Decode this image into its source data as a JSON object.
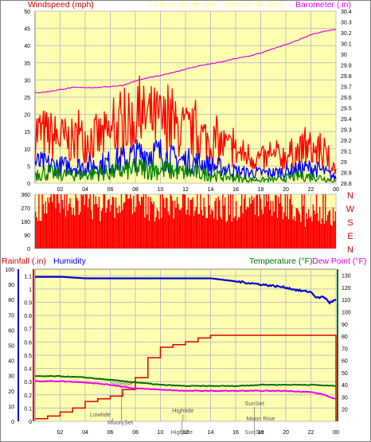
{
  "header": {
    "left_label": "Windspeed (mph)",
    "center_label": "24 hour graph day : October 30 2020",
    "right_label": "Barometer (.in)"
  },
  "colors": {
    "plot_bg": "#ffffb0",
    "frame": "#808080",
    "grid": "#c0c0c0",
    "windspeed_high": "#ff0000",
    "windspeed_avg": "#0000ff",
    "windspeed_low": "#008000",
    "barometer": "#e000e0",
    "direction": "#ff0000",
    "humidity": "#0000cc",
    "rainfall": "#dd0000",
    "temperature": "#007000",
    "dew_point": "#ee00ee",
    "rain_label": "#cc0000",
    "humidity_label": "#0000cc",
    "temp_label": "#007000",
    "dew_label": "#dd00dd",
    "header_label": "#ee00ee",
    "compass": "#d00000"
  },
  "chart_data": [
    {
      "id": "wind",
      "type": "line",
      "x_ticks": [
        "02",
        "04",
        "06",
        "08",
        "10",
        "12",
        "14",
        "16",
        "18",
        "20",
        "22",
        "00"
      ],
      "x_range": [
        0,
        24
      ],
      "y_left": {
        "label": "Windspeed (mph)",
        "range": [
          0,
          50
        ],
        "ticks": [
          0,
          5,
          10,
          15,
          20,
          25,
          30,
          35,
          40,
          45,
          50
        ]
      },
      "y_right": {
        "label": "Barometer (.in)",
        "range": [
          28.8,
          30.4
        ],
        "ticks": [
          "28.8",
          "28.9",
          "29",
          "29.1",
          "29.2",
          "29.3",
          "29.4",
          "29.5",
          "29.6",
          "29.7",
          "29.8",
          "29.9",
          "30",
          "30.1",
          "30.2",
          "30.3",
          "30.4"
        ]
      },
      "series": [
        {
          "role": "windspeed_high",
          "axis": "left",
          "x": [
            0,
            1,
            2,
            3,
            4,
            5,
            6,
            7,
            8,
            9,
            10,
            11,
            12,
            13,
            14,
            15,
            16,
            17,
            18,
            19,
            20,
            21,
            22,
            23,
            24
          ],
          "y": [
            15,
            14,
            13,
            12,
            13,
            13,
            14,
            16,
            18,
            19,
            18,
            16,
            15,
            14,
            12,
            11,
            9,
            8,
            7,
            7,
            8,
            9,
            10,
            8,
            4
          ]
        },
        {
          "role": "windspeed_avg",
          "axis": "left",
          "x": [
            0,
            1,
            2,
            3,
            4,
            5,
            6,
            7,
            8,
            9,
            10,
            11,
            12,
            13,
            14,
            15,
            16,
            17,
            18,
            19,
            20,
            21,
            22,
            23,
            24
          ],
          "y": [
            6,
            5.5,
            5,
            5,
            5,
            5.5,
            6,
            7,
            8,
            9,
            8.5,
            7,
            6.5,
            6,
            5,
            4.5,
            3.5,
            3,
            3,
            3,
            3.5,
            4,
            4.5,
            3.5,
            1.5
          ]
        },
        {
          "role": "windspeed_low",
          "axis": "left",
          "x": [
            0,
            1,
            2,
            3,
            4,
            5,
            6,
            7,
            8,
            9,
            10,
            11,
            12,
            13,
            14,
            15,
            16,
            17,
            18,
            19,
            20,
            21,
            22,
            23,
            24
          ],
          "y": [
            3,
            3,
            2.5,
            2.5,
            2.5,
            3,
            3,
            3.5,
            4,
            4.5,
            4,
            3.5,
            3,
            3,
            2.5,
            2,
            1.5,
            1,
            1,
            1,
            1.5,
            2,
            2,
            1.5,
            0.5
          ]
        },
        {
          "role": "barometer",
          "axis": "right",
          "x": [
            0,
            1,
            2,
            3,
            4,
            5,
            6,
            7,
            8,
            9,
            10,
            11,
            12,
            13,
            14,
            15,
            16,
            17,
            18,
            19,
            20,
            21,
            22,
            23,
            24
          ],
          "y": [
            29.64,
            29.65,
            29.67,
            29.69,
            29.69,
            29.69,
            29.7,
            29.71,
            29.75,
            29.78,
            29.8,
            29.83,
            29.86,
            29.89,
            29.91,
            29.93,
            29.96,
            29.98,
            30.01,
            30.05,
            30.09,
            30.13,
            30.18,
            30.21,
            30.23
          ]
        }
      ]
    },
    {
      "id": "direction",
      "type": "bar",
      "x_range": [
        0,
        24
      ],
      "y_range": [
        0,
        360
      ],
      "y_ticks": [
        0,
        90,
        180,
        270,
        360
      ],
      "compass": [
        "N",
        "W",
        "S",
        "E",
        "N"
      ],
      "x": [
        0,
        1,
        2,
        3,
        4,
        5,
        6,
        7,
        8,
        9,
        10,
        11,
        12,
        13,
        14,
        15,
        16,
        17,
        18,
        19,
        20,
        21,
        22,
        23,
        24
      ],
      "y": [
        250,
        300,
        270,
        290,
        310,
        260,
        280,
        300,
        320,
        270,
        260,
        280,
        300,
        290,
        270,
        260,
        250,
        280,
        300,
        270,
        260,
        240,
        230,
        220,
        180
      ]
    },
    {
      "id": "climate",
      "type": "line",
      "x_ticks": [
        "02",
        "04",
        "06",
        "08",
        "10",
        "12",
        "14",
        "16",
        "18",
        "20",
        "22",
        "00"
      ],
      "x_range": [
        0,
        24
      ],
      "y_humidity": {
        "label": "Humidity",
        "range": [
          0,
          100
        ],
        "ticks": [
          0,
          10,
          20,
          30,
          40,
          50,
          60,
          70,
          80,
          90,
          100
        ]
      },
      "y_rain": {
        "label": "Rainfall (.in)",
        "range": [
          0,
          1.15
        ],
        "ticks": [
          "0",
          "0.1",
          "0.2",
          "0.3",
          "0.4",
          "0.5",
          "0.6",
          "0.7",
          "0.8",
          "0.9",
          "1",
          "1.1"
        ]
      },
      "y_temp": {
        "label": "Temperature (°F)",
        "range": [
          10,
          135
        ],
        "ticks": [
          20,
          30,
          40,
          50,
          60,
          70,
          80,
          90,
          100,
          110,
          120,
          130
        ]
      },
      "dew_label": "Dew Point (°F)",
      "series": [
        {
          "role": "humidity",
          "axis": "humidity",
          "x": [
            0,
            2,
            4,
            6,
            8,
            10,
            12,
            14,
            15,
            16,
            17,
            18,
            19,
            20,
            21,
            22,
            22.5,
            23,
            23.5,
            24
          ],
          "y": [
            95,
            95,
            94,
            94,
            94,
            94,
            94,
            94,
            93,
            92,
            91,
            90,
            89,
            88,
            86,
            85,
            81,
            82,
            78,
            80
          ]
        },
        {
          "role": "rainfall",
          "axis": "rain",
          "x": [
            0,
            1,
            2,
            3,
            4,
            5,
            6,
            7,
            8,
            9,
            10,
            11,
            12,
            13,
            14,
            15,
            16,
            17,
            18,
            19,
            20,
            21,
            22,
            23,
            23.9,
            24
          ],
          "y": [
            0.02,
            0.04,
            0.07,
            0.1,
            0.15,
            0.17,
            0.19,
            0.24,
            0.33,
            0.48,
            0.56,
            0.58,
            0.6,
            0.63,
            0.65,
            0.65,
            0.65,
            0.65,
            0.65,
            0.65,
            0.65,
            0.65,
            0.65,
            0.65,
            0.65,
            0.0
          ]
        },
        {
          "role": "temperature",
          "axis": "temp",
          "x": [
            0,
            2,
            4,
            6,
            8,
            10,
            12,
            14,
            16,
            18,
            20,
            22,
            24
          ],
          "y": [
            47,
            47,
            46,
            44,
            42,
            40,
            39,
            39,
            39,
            40,
            40,
            40,
            39
          ]
        },
        {
          "role": "dew_point",
          "axis": "temp",
          "x": [
            0,
            2,
            4,
            6,
            8,
            10,
            12,
            14,
            16,
            18,
            20,
            22,
            23,
            24
          ],
          "y": [
            43,
            43,
            42,
            40,
            37,
            36,
            35,
            35,
            35,
            35,
            35,
            34,
            32,
            28
          ]
        }
      ],
      "annotations": [
        "SunRise",
        "Lowtide",
        "Moon Set",
        "Hightide",
        "SunSet",
        "Moon Rise",
        "Hightide",
        "SunSet"
      ]
    }
  ]
}
